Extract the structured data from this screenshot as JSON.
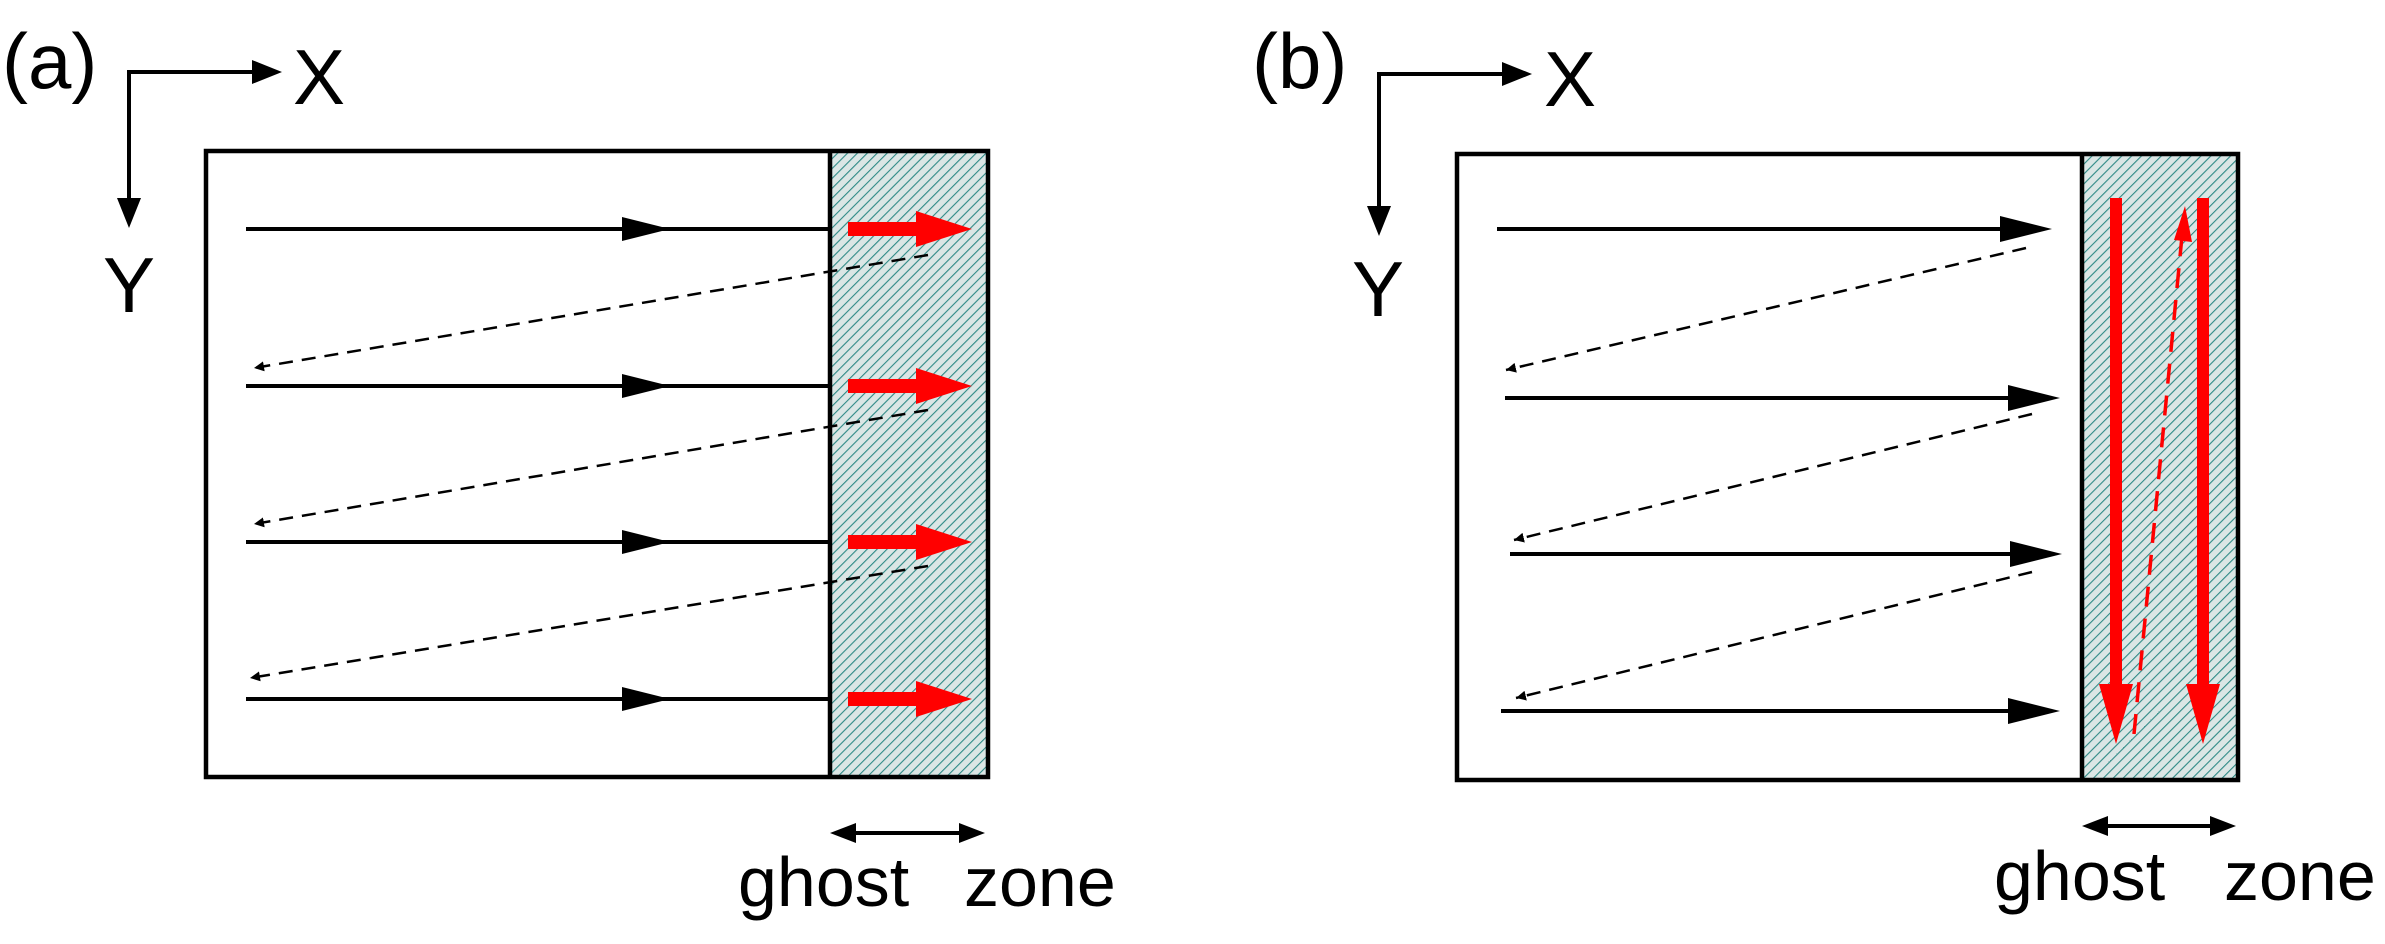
{
  "panels": [
    {
      "id": "a",
      "panel_label": "(a)",
      "x_axis_label": "X",
      "y_axis_label": "Y",
      "ghost_zone_label_1": "ghost",
      "ghost_zone_label_2": "zone"
    },
    {
      "id": "b",
      "panel_label": "(b)",
      "x_axis_label": "X",
      "y_axis_label": "Y",
      "ghost_zone_label_1": "ghost",
      "ghost_zone_label_2": "zone"
    }
  ],
  "colors": {
    "line": "#000000",
    "highlight": "#ff0000",
    "ghost_fill": "#c8d8d6",
    "ghost_hatch": "#2f8a86"
  }
}
